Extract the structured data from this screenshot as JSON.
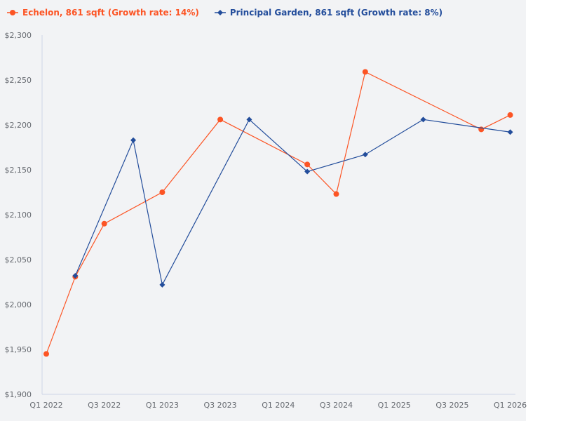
{
  "legend": {
    "series": [
      {
        "label": "Echelon, 861 sqft (Growth rate: 14%)",
        "color": "#fc5424",
        "marker": "circle"
      },
      {
        "label": "Principal Garden, 861 sqft (Growth rate: 8%)",
        "color": "#234d9b",
        "marker": "diamond"
      }
    ]
  },
  "axes": {
    "y_ticks": [
      "$2,300",
      "$2,250",
      "$2,200",
      "$2,150",
      "$2,100",
      "$2,050",
      "$2,000",
      "$1,950",
      "$1,900"
    ],
    "x_ticks": [
      "Q1 2022",
      "Q3 2022",
      "Q1 2023",
      "Q3 2023",
      "Q1 2024",
      "Q3 2024",
      "Q1 2025",
      "Q3 2025",
      "Q1 2026"
    ]
  },
  "chart_data": {
    "type": "line",
    "title": "",
    "xlabel": "",
    "ylabel": "",
    "ylim": [
      1900,
      2300
    ],
    "grid": false,
    "legend_position": "top-left",
    "x": [
      "Q1 2022",
      "Q2 2022",
      "Q3 2022",
      "Q4 2022",
      "Q1 2023",
      "Q2 2023",
      "Q3 2023",
      "Q4 2023",
      "Q1 2024",
      "Q2 2024",
      "Q3 2024",
      "Q4 2024",
      "Q1 2025",
      "Q2 2025",
      "Q3 2025",
      "Q4 2025",
      "Q1 2026"
    ],
    "series": [
      {
        "name": "Echelon, 861 sqft (Growth rate: 14%)",
        "color": "#fc5424",
        "marker": "circle",
        "values": [
          1945,
          2031,
          2090,
          null,
          2125,
          null,
          2206,
          null,
          null,
          2156,
          2123,
          2259,
          null,
          null,
          null,
          2195,
          2211
        ]
      },
      {
        "name": "Principal Garden, 861 sqft (Growth rate: 8%)",
        "color": "#234d9b",
        "marker": "diamond",
        "values": [
          null,
          2032,
          null,
          2183,
          2022,
          null,
          null,
          2206,
          null,
          2148,
          null,
          2167,
          null,
          2206,
          null,
          null,
          2192
        ]
      }
    ]
  }
}
